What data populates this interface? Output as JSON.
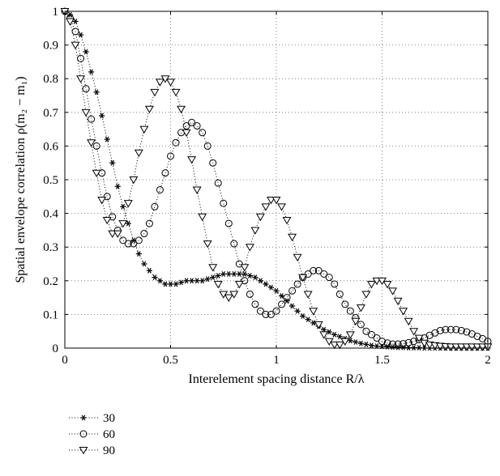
{
  "chart_data": {
    "type": "scatter",
    "title": "",
    "xlabel": "Interelement spacing distance R/λ",
    "ylabel": "Spatial envelope correlation ρ(m₂ − m₁)",
    "xlim": [
      0,
      2
    ],
    "ylim": [
      0,
      1
    ],
    "xticks": [
      "0",
      "0.5",
      "1",
      "1.5",
      "2"
    ],
    "yticks": [
      "0",
      "0.1",
      "0.2",
      "0.3",
      "0.4",
      "0.5",
      "0.6",
      "0.7",
      "0.8",
      "0.9",
      "1"
    ],
    "grid": true,
    "legend_position": "bottom-left",
    "series": [
      {
        "name": "30",
        "marker": "star",
        "x": [
          0.0,
          0.025,
          0.05,
          0.075,
          0.1,
          0.125,
          0.15,
          0.175,
          0.2,
          0.225,
          0.25,
          0.275,
          0.3,
          0.325,
          0.35,
          0.375,
          0.4,
          0.425,
          0.45,
          0.475,
          0.5,
          0.525,
          0.55,
          0.575,
          0.6,
          0.625,
          0.65,
          0.675,
          0.7,
          0.725,
          0.75,
          0.775,
          0.8,
          0.825,
          0.85,
          0.875,
          0.9,
          0.925,
          0.95,
          0.975,
          1.0,
          1.025,
          1.05,
          1.075,
          1.1,
          1.125,
          1.15,
          1.175,
          1.2,
          1.225,
          1.25,
          1.275,
          1.3,
          1.325,
          1.35,
          1.375,
          1.4,
          1.425,
          1.45,
          1.475,
          1.5,
          1.525,
          1.55,
          1.575,
          1.6,
          1.625,
          1.65,
          1.675,
          1.7,
          1.725,
          1.75,
          1.775,
          1.8,
          1.825,
          1.85,
          1.875,
          1.9,
          1.925,
          1.95,
          1.975,
          2.0
        ],
        "y": [
          1.0,
          0.99,
          0.97,
          0.93,
          0.88,
          0.82,
          0.76,
          0.69,
          0.62,
          0.55,
          0.48,
          0.42,
          0.37,
          0.32,
          0.28,
          0.25,
          0.23,
          0.21,
          0.2,
          0.19,
          0.19,
          0.19,
          0.195,
          0.2,
          0.2,
          0.2,
          0.2,
          0.205,
          0.21,
          0.215,
          0.22,
          0.22,
          0.22,
          0.22,
          0.22,
          0.215,
          0.21,
          0.2,
          0.19,
          0.18,
          0.17,
          0.155,
          0.14,
          0.125,
          0.11,
          0.095,
          0.085,
          0.075,
          0.065,
          0.055,
          0.048,
          0.04,
          0.034,
          0.028,
          0.022,
          0.018,
          0.014,
          0.011,
          0.008,
          0.006,
          0.005,
          0.004,
          0.003,
          0.002,
          0.002,
          0.001,
          0.001,
          0.001,
          0.0,
          0.0,
          0.0,
          0.0,
          0.0,
          0.0,
          0.0,
          0.0,
          0.0,
          0.0,
          0.0,
          0.0,
          0.0
        ]
      },
      {
        "name": "60",
        "marker": "circle",
        "x": [
          0.0,
          0.025,
          0.05,
          0.075,
          0.1,
          0.125,
          0.15,
          0.175,
          0.2,
          0.225,
          0.25,
          0.275,
          0.3,
          0.325,
          0.35,
          0.375,
          0.4,
          0.425,
          0.45,
          0.475,
          0.5,
          0.525,
          0.55,
          0.575,
          0.6,
          0.625,
          0.65,
          0.675,
          0.7,
          0.725,
          0.75,
          0.775,
          0.8,
          0.825,
          0.85,
          0.875,
          0.9,
          0.925,
          0.95,
          0.975,
          1.0,
          1.025,
          1.05,
          1.075,
          1.1,
          1.125,
          1.15,
          1.175,
          1.2,
          1.225,
          1.25,
          1.275,
          1.3,
          1.325,
          1.35,
          1.375,
          1.4,
          1.425,
          1.45,
          1.475,
          1.5,
          1.525,
          1.55,
          1.575,
          1.6,
          1.625,
          1.65,
          1.675,
          1.7,
          1.725,
          1.75,
          1.775,
          1.8,
          1.825,
          1.85,
          1.875,
          1.9,
          1.925,
          1.95,
          1.975,
          2.0
        ],
        "y": [
          1.0,
          0.98,
          0.94,
          0.86,
          0.77,
          0.68,
          0.6,
          0.52,
          0.45,
          0.39,
          0.35,
          0.32,
          0.31,
          0.31,
          0.32,
          0.34,
          0.37,
          0.42,
          0.47,
          0.52,
          0.57,
          0.61,
          0.64,
          0.66,
          0.67,
          0.66,
          0.64,
          0.6,
          0.55,
          0.49,
          0.43,
          0.37,
          0.31,
          0.25,
          0.2,
          0.16,
          0.13,
          0.11,
          0.1,
          0.1,
          0.11,
          0.13,
          0.15,
          0.17,
          0.19,
          0.21,
          0.22,
          0.23,
          0.23,
          0.22,
          0.21,
          0.19,
          0.16,
          0.13,
          0.11,
          0.09,
          0.07,
          0.05,
          0.04,
          0.03,
          0.02,
          0.015,
          0.012,
          0.012,
          0.013,
          0.016,
          0.02,
          0.025,
          0.03,
          0.038,
          0.045,
          0.052,
          0.055,
          0.055,
          0.055,
          0.052,
          0.048,
          0.042,
          0.035,
          0.028,
          0.02
        ]
      },
      {
        "name": "90",
        "marker": "triangle-down",
        "x": [
          0.0,
          0.025,
          0.05,
          0.075,
          0.1,
          0.125,
          0.15,
          0.175,
          0.2,
          0.225,
          0.25,
          0.275,
          0.3,
          0.325,
          0.35,
          0.375,
          0.4,
          0.425,
          0.45,
          0.475,
          0.5,
          0.525,
          0.55,
          0.575,
          0.6,
          0.625,
          0.65,
          0.675,
          0.7,
          0.725,
          0.75,
          0.775,
          0.8,
          0.825,
          0.85,
          0.875,
          0.9,
          0.925,
          0.95,
          0.975,
          1.0,
          1.025,
          1.05,
          1.075,
          1.1,
          1.125,
          1.15,
          1.175,
          1.2,
          1.225,
          1.25,
          1.275,
          1.3,
          1.325,
          1.35,
          1.375,
          1.4,
          1.425,
          1.45,
          1.475,
          1.5,
          1.525,
          1.55,
          1.575,
          1.6,
          1.625,
          1.65,
          1.675,
          1.7,
          1.725,
          1.75,
          1.775,
          1.8,
          1.825,
          1.85,
          1.875,
          1.9,
          1.925,
          1.95,
          1.975,
          2.0
        ],
        "y": [
          1.0,
          0.97,
          0.9,
          0.8,
          0.7,
          0.61,
          0.52,
          0.44,
          0.38,
          0.34,
          0.34,
          0.37,
          0.43,
          0.5,
          0.58,
          0.65,
          0.71,
          0.76,
          0.79,
          0.8,
          0.79,
          0.76,
          0.71,
          0.64,
          0.56,
          0.47,
          0.39,
          0.31,
          0.24,
          0.19,
          0.16,
          0.15,
          0.16,
          0.19,
          0.24,
          0.3,
          0.35,
          0.39,
          0.42,
          0.44,
          0.44,
          0.42,
          0.38,
          0.33,
          0.27,
          0.21,
          0.16,
          0.11,
          0.07,
          0.04,
          0.02,
          0.01,
          0.01,
          0.02,
          0.04,
          0.08,
          0.12,
          0.16,
          0.19,
          0.2,
          0.2,
          0.19,
          0.17,
          0.14,
          0.11,
          0.08,
          0.05,
          0.03,
          0.015,
          0.01,
          0.008,
          0.006,
          0.005,
          0.004,
          0.004,
          0.004,
          0.004,
          0.004,
          0.004,
          0.004,
          0.004
        ]
      }
    ]
  }
}
